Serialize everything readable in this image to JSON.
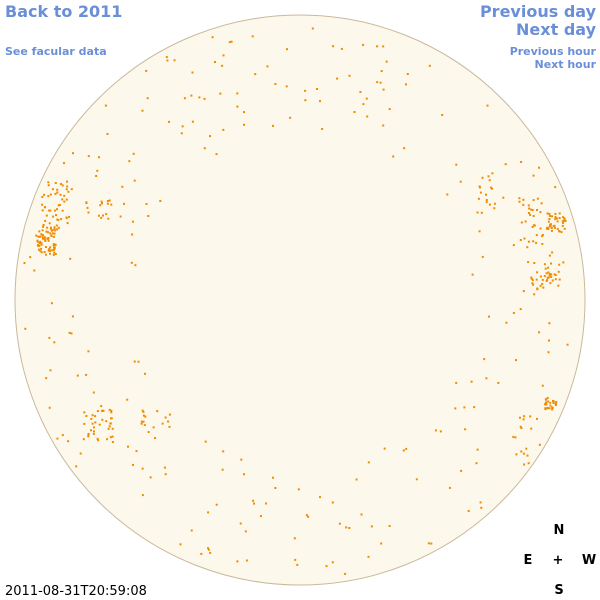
{
  "navigation": {
    "back_year": "Back to 2011",
    "facular_link": "See facular data",
    "previous_day": "Previous day",
    "next_day": "Next day",
    "previous_hour": "Previous hour",
    "next_hour": "Next hour"
  },
  "timestamp": "2011-08-31T20:59:08",
  "compass": {
    "north": "N",
    "east": "E",
    "center": "+",
    "west": "W",
    "south": "S"
  }
}
